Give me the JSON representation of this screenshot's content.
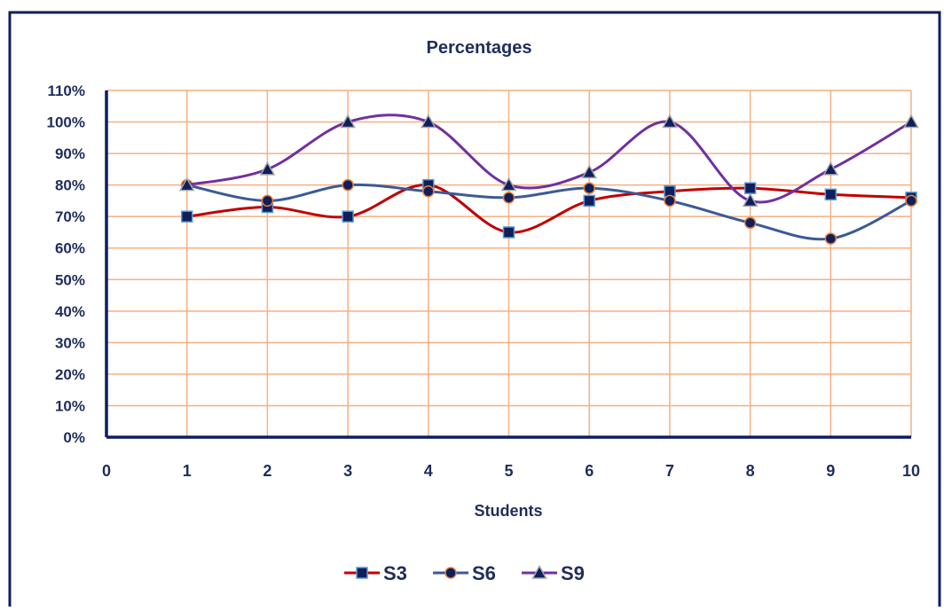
{
  "chart_data": {
    "type": "line",
    "title": "Percentages",
    "xlabel": "Students",
    "ylabel": "",
    "x": [
      1,
      2,
      3,
      4,
      5,
      6,
      7,
      8,
      9,
      10
    ],
    "xlim": [
      0,
      10
    ],
    "xticks": [
      0,
      1,
      2,
      3,
      4,
      5,
      6,
      7,
      8,
      9,
      10
    ],
    "ylim": [
      0,
      1.1
    ],
    "yticks": [
      0,
      0.1,
      0.2,
      0.3,
      0.4,
      0.5,
      0.6,
      0.7,
      0.8,
      0.9,
      1.0,
      1.1
    ],
    "ytick_labels": [
      "0%",
      "10%",
      "20%",
      "30%",
      "40%",
      "50%",
      "60%",
      "70%",
      "80%",
      "90%",
      "100%",
      "110%"
    ],
    "grid": true,
    "smooth": true,
    "legend_position": "bottom",
    "series": [
      {
        "name": "S3",
        "color": "#c00000",
        "marker": "square",
        "marker_fill": "#0d1f5c",
        "marker_edge": "#5b9bd5",
        "values": [
          0.7,
          0.73,
          0.7,
          0.8,
          0.65,
          0.75,
          0.78,
          0.79,
          0.77,
          0.76
        ]
      },
      {
        "name": "S6",
        "color": "#3c5a96",
        "marker": "circle",
        "marker_fill": "#0d1f5c",
        "marker_edge": "#ed7d31",
        "values": [
          0.8,
          0.75,
          0.8,
          0.78,
          0.76,
          0.79,
          0.75,
          0.68,
          0.63,
          0.75
        ]
      },
      {
        "name": "S9",
        "color": "#7030a0",
        "marker": "triangle",
        "marker_fill": "#0d1f5c",
        "marker_edge": "#a5a5a5",
        "values": [
          0.8,
          0.85,
          1.0,
          1.0,
          0.8,
          0.84,
          1.0,
          0.75,
          0.85,
          1.0
        ]
      }
    ],
    "colors": {
      "frame": "#0d1f5c",
      "grid": "#f4b183",
      "axis": "#0d1f5c",
      "text": "#1f2d5c"
    }
  }
}
